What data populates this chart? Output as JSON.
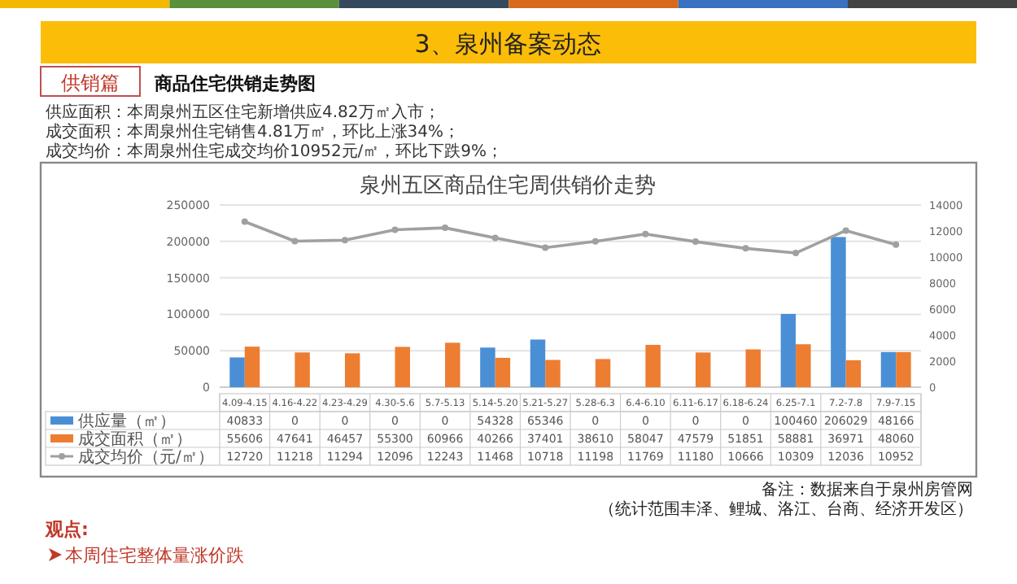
{
  "chart_data": {
    "type": "bar",
    "title": "泉州五区商品住宅周供销价走势",
    "annotations": [
      "3、泉州备案动态",
      "供销篇",
      "商品住宅供销走势图",
      "供应面积：本周泉州五区住宅新增供应4.82万㎡入市；",
      "成交面积：本周泉州住宅销售4.81万㎡，环比上涨34%；",
      "成交均价：本周泉州住宅成交均价10952元/㎡，环比下跌9%；",
      "备注：数据来自于泉州房管网",
      "（统计范围丰泽、鲤城、洛江、台商、经济开发区）",
      "观点:",
      "本周住宅整体量涨价跌"
    ],
    "categories": [
      "4.09-4.15",
      "4.16-4.22",
      "4.23-4.29",
      "4.30-5.6",
      "5.7-5.13",
      "5.14-5.20",
      "5.21-5.27",
      "5.28-6.3",
      "6.4-6.10",
      "6.11-6.17",
      "6.18-6.24",
      "6.25-7.1",
      "7.2-7.8",
      "7.9-7.15"
    ],
    "series": [
      {
        "name": "供应量（㎡）",
        "color": "#4a8fd6",
        "values": [
          40833,
          0,
          0,
          0,
          0,
          54328,
          65346,
          0,
          0,
          0,
          0,
          100460,
          206029,
          48166
        ]
      },
      {
        "name": "成交面积（㎡）",
        "color": "#ed7d31",
        "values": [
          55606,
          47641,
          46457,
          55300,
          60966,
          40266,
          37401,
          38610,
          58047,
          47579,
          51851,
          58881,
          36971,
          48060
        ]
      },
      {
        "name": "成交均价（元/㎡）",
        "color": "#a0a0a0",
        "type": "line",
        "axis": "y2",
        "marker": "circle",
        "values": [
          12720,
          11218,
          11294,
          12096,
          12243,
          11468,
          10718,
          11198,
          11769,
          11180,
          10666,
          10309,
          12036,
          10952
        ]
      }
    ],
    "ylim": [
      0,
      250000
    ],
    "yticks": [
      0,
      50000,
      100000,
      150000,
      200000,
      250000
    ],
    "y2lim": [
      0,
      14000
    ],
    "y2ticks": [
      0,
      2000,
      4000,
      6000,
      8000,
      10000,
      12000,
      14000
    ],
    "grid": "y",
    "legend": "bottom",
    "data_labels": true
  }
}
